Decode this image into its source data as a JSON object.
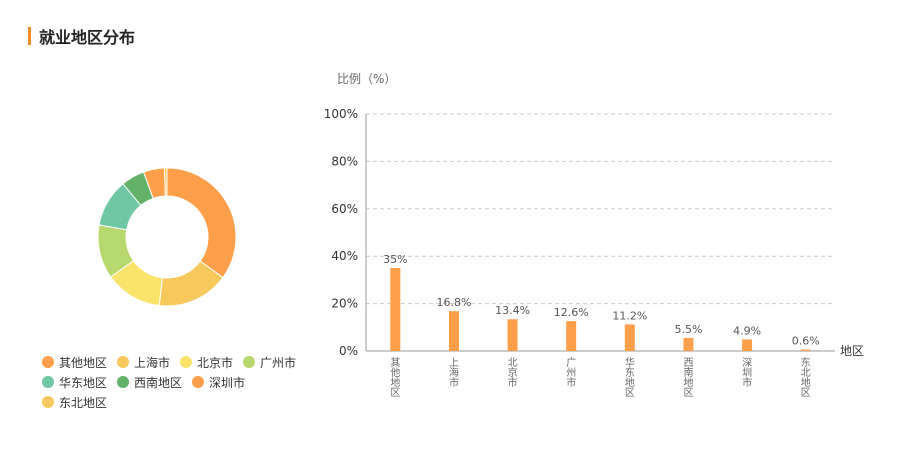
{
  "section_title": "就业地区分布",
  "colors": {
    "accent": "#f08a24",
    "bar": "#ff9f4a",
    "axis_text": "#666666",
    "grid": "#cccccc"
  },
  "chart_data": [
    {
      "type": "pie",
      "variant": "donut",
      "title": "",
      "categories": [
        "其他地区",
        "上海市",
        "北京市",
        "广州市",
        "华东地区",
        "西南地区",
        "深圳市",
        "东北地区"
      ],
      "values": [
        35,
        16.8,
        13.4,
        12.6,
        11.2,
        5.5,
        4.9,
        0.6
      ],
      "colors": [
        "#ff9f4a",
        "#f7c95c",
        "#f9e36a",
        "#b7d86e",
        "#6fc7a3",
        "#62b26a",
        "#ff9f4a",
        "#f7c95c"
      ],
      "legend": {
        "position": "bottom-left",
        "rows": [
          [
            "其他地区",
            "上海市",
            "北京市",
            "广州市"
          ],
          [
            "华东地区",
            "西南地区",
            "深圳市"
          ],
          [
            "东北地区"
          ]
        ]
      }
    },
    {
      "type": "bar",
      "title": "",
      "ylabel": "比例（%）",
      "xlabel": "地区",
      "categories": [
        "其他地区",
        "上海市",
        "北京市",
        "广州市",
        "华东地区",
        "西南地区",
        "深圳市",
        "东北地区"
      ],
      "values": [
        35,
        16.8,
        13.4,
        12.6,
        11.2,
        5.5,
        4.9,
        0.6
      ],
      "value_labels": [
        "35%",
        "16.8%",
        "13.4%",
        "12.6%",
        "11.2%",
        "5.5%",
        "4.9%",
        "0.6%"
      ],
      "ylim": [
        0,
        100
      ],
      "yticks": [
        0,
        20,
        40,
        60,
        80,
        100
      ],
      "ytick_labels": [
        "0%",
        "20%",
        "40%",
        "60%",
        "80%",
        "100%"
      ],
      "grid": "dashed-horizontal"
    }
  ]
}
